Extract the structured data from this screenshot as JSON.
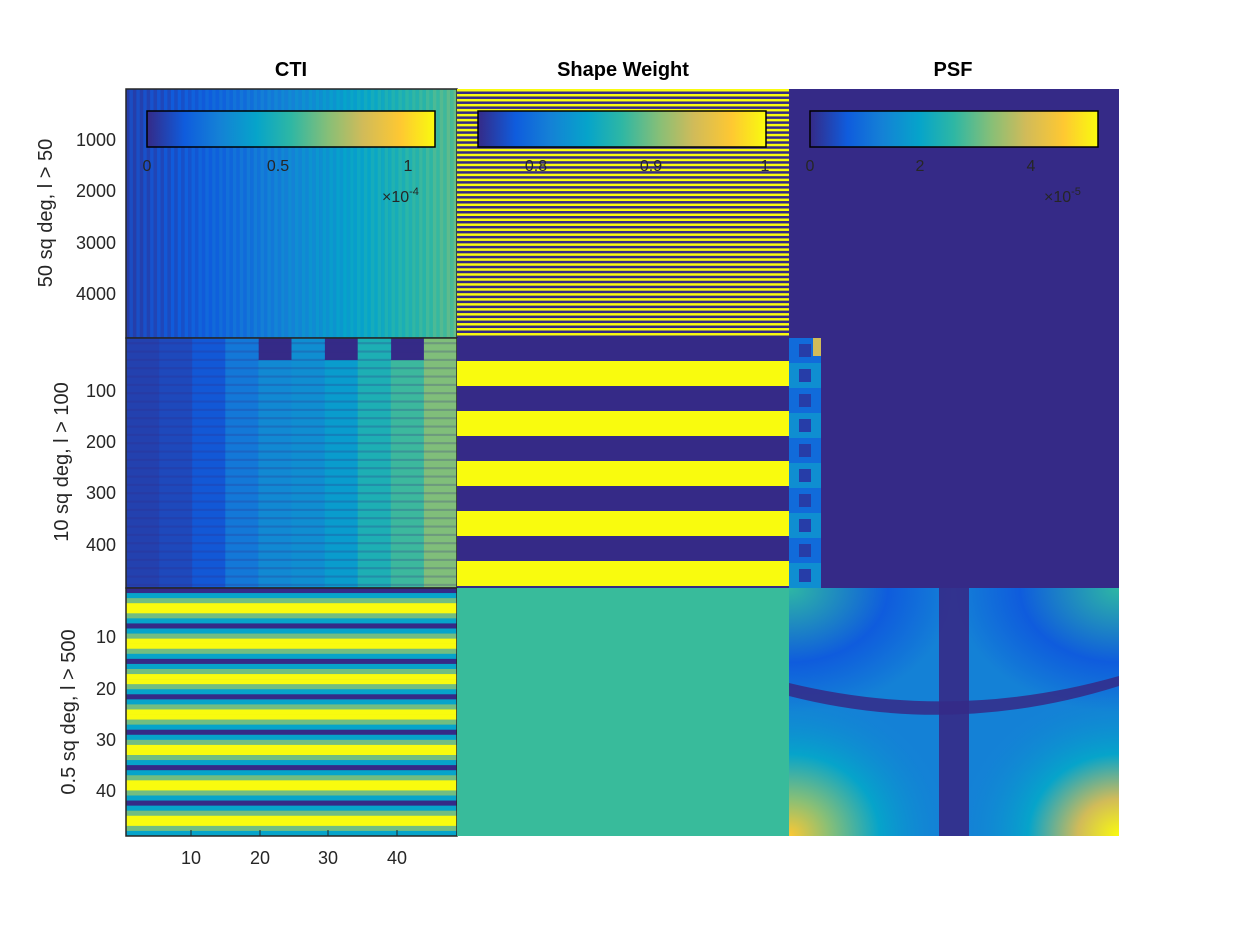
{
  "chart_data": {
    "type": "heatmap",
    "colormap": "parula",
    "layout": "3 rows x 3 columns",
    "columns": [
      "CTI",
      "Shape Weight",
      "PSF"
    ],
    "rows": [
      {
        "ylabel": "50 sq deg, l > 50",
        "yticks": [
          "1000",
          "2000",
          "3000",
          "4000"
        ],
        "ylim": [
          1,
          4900
        ]
      },
      {
        "ylabel": "10 sq deg, l > 100",
        "yticks": [
          "100",
          "200",
          "300",
          "400"
        ],
        "ylim": [
          1,
          490
        ]
      },
      {
        "ylabel": "0.5 sq deg, l > 500",
        "yticks": [
          "10",
          "20",
          "30",
          "40"
        ],
        "ylim": [
          1,
          49
        ]
      }
    ],
    "xticks": [
      "10",
      "20",
      "30",
      "40"
    ],
    "xlim": [
      0.5,
      48.5
    ],
    "colorbars": [
      {
        "panel": "CTI",
        "ticks": [
          "0",
          "0.5",
          "1"
        ],
        "range": [
          0,
          1.1
        ],
        "exponent": "×10",
        "power": "-4"
      },
      {
        "panel": "Shape Weight",
        "ticks": [
          "0.8",
          "0.9",
          "1"
        ],
        "range": [
          0.74,
          1.0
        ]
      },
      {
        "panel": "PSF",
        "ticks": [
          "0",
          "2",
          "4"
        ],
        "range": [
          0,
          5.2
        ],
        "exponent": "×10",
        "power": "-5"
      }
    ]
  }
}
